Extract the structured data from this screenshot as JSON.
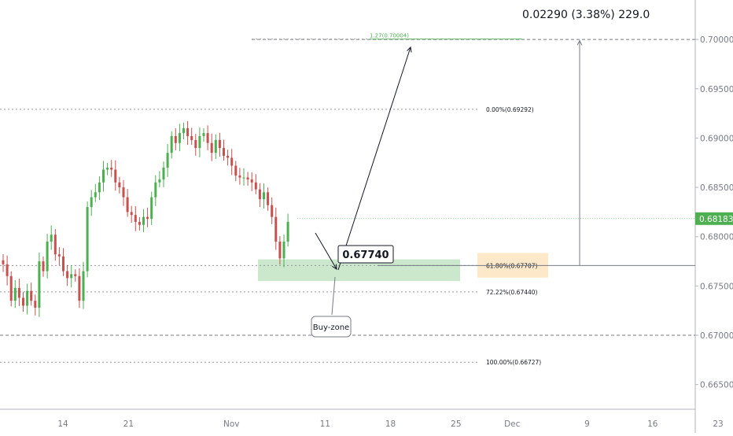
{
  "chart_data": {
    "type": "candlestick",
    "instrument_price_scale": "right",
    "ylim": [
      0.6625,
      0.704
    ],
    "x_ticks": [
      {
        "label": "14",
        "day": 14
      },
      {
        "label": "21",
        "day": 21
      },
      {
        "label": "Nov",
        "day": 32
      },
      {
        "label": "11",
        "day": 42
      },
      {
        "label": "18",
        "day": 49
      },
      {
        "label": "25",
        "day": 56
      },
      {
        "label": "Dec",
        "day": 62
      },
      {
        "label": "9",
        "day": 70
      },
      {
        "label": "16",
        "day": 77
      },
      {
        "label": "23",
        "day": 84
      }
    ],
    "y_ticks": [
      {
        "label": "0.70000",
        "value": 0.7
      },
      {
        "label": "0.69500",
        "value": 0.695
      },
      {
        "label": "0.69000",
        "value": 0.69
      },
      {
        "label": "0.68500",
        "value": 0.685
      },
      {
        "label": "0.68000",
        "value": 0.68
      },
      {
        "label": "0.67500",
        "value": 0.675
      },
      {
        "label": "0.67000",
        "value": 0.67
      },
      {
        "label": "0.66500",
        "value": 0.665
      }
    ],
    "last_price": {
      "label": "0.68183",
      "value": 0.68183,
      "color": "#4caf50"
    },
    "candle_colors": {
      "up": "#4caf50",
      "down": "#c8504e"
    },
    "closes": [
      0.6772,
      0.676,
      0.6735,
      0.6748,
      0.6738,
      0.673,
      0.6745,
      0.6735,
      0.6728,
      0.6775,
      0.6765,
      0.6795,
      0.6802,
      0.6782,
      0.678,
      0.6765,
      0.6758,
      0.6762,
      0.676,
      0.6735,
      0.6765,
      0.683,
      0.684,
      0.6845,
      0.6855,
      0.6868,
      0.687,
      0.6868,
      0.6855,
      0.685,
      0.684,
      0.6825,
      0.6822,
      0.6815,
      0.6812,
      0.682,
      0.6818,
      0.684,
      0.6855,
      0.6858,
      0.687,
      0.6885,
      0.6902,
      0.6895,
      0.6905,
      0.691,
      0.6902,
      0.6898,
      0.689,
      0.6902,
      0.6905,
      0.6895,
      0.6885,
      0.6898,
      0.689,
      0.6882,
      0.688,
      0.6872,
      0.6862,
      0.686,
      0.686,
      0.6858,
      0.6855,
      0.6848,
      0.6838,
      0.6845,
      0.6832,
      0.682,
      0.6795,
      0.6778,
      0.6795,
      0.6815
    ],
    "fib_levels": [
      {
        "label": "1.27(0.70004)",
        "value": 0.70004,
        "color": "#4caf50"
      },
      {
        "label": "0.00%(0.69292)",
        "value": 0.69292,
        "color": "#131722"
      },
      {
        "label": "61.80%(0.67707)",
        "value": 0.67707,
        "color": "#131722"
      },
      {
        "label": "72.22%(0.67440)",
        "value": 0.6744,
        "color": "#131722"
      },
      {
        "label": "100.00%(0.66727)",
        "value": 0.66727,
        "color": "#131722"
      }
    ],
    "extra_dashed_levels": [
      0.7,
      0.67
    ],
    "buy_zone": {
      "low": 0.6755,
      "high": 0.6777,
      "color": "#c8e6c9"
    },
    "target_zone": {
      "low": 0.67585,
      "high": 0.67835,
      "color": "#fde6c4"
    },
    "key_price_label": "0.67740",
    "callout_label": "Buy-zone",
    "measure_label": "0.02290 (3.38%) 229.0"
  }
}
